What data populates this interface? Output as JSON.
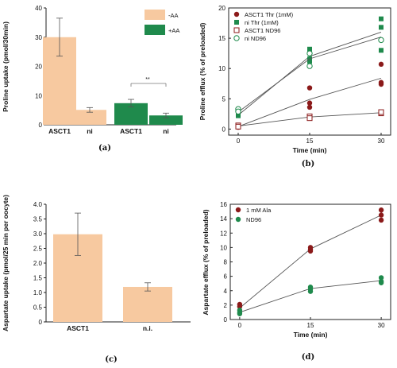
{
  "chart_data": [
    {
      "panel": "(a)",
      "type": "bar",
      "ylabel": "Proline uptake (pmol/30min)",
      "ylim": [
        0,
        40
      ],
      "yticks": [
        0,
        10,
        20,
        30,
        40
      ],
      "categories": [
        "ASCT1",
        "ni",
        "ASCT1",
        "ni"
      ],
      "values": [
        30.0,
        5.1,
        7.4,
        3.2
      ],
      "errors": [
        6.5,
        0.8,
        1.3,
        0.8
      ],
      "bar_colors": [
        "#f7c9a0",
        "#f7c9a0",
        "#1f8a4c",
        "#1f8a4c"
      ],
      "legend": [
        {
          "name": "-AA",
          "color": "#f7c9a0"
        },
        {
          "name": "+AA",
          "color": "#1f8a4c"
        }
      ],
      "legend_position": "top-right",
      "annotation": "**"
    },
    {
      "panel": "(b)",
      "type": "scatter",
      "xlabel": "Time (min)",
      "ylabel": "Proline efflux (% of preloaded)",
      "xlim": [
        -2,
        32
      ],
      "ylim": [
        -1,
        20
      ],
      "xticks": [
        0,
        15,
        30
      ],
      "yticks": [
        0,
        5,
        10,
        15,
        20
      ],
      "legend_position": "top-left",
      "series": [
        {
          "name": "ASCT1 Thr (1mM)",
          "color": "#8b1a1a",
          "marker": "filled-circle",
          "points": [
            [
              0,
              0.5
            ],
            [
              0,
              0.3
            ],
            [
              15,
              4.3
            ],
            [
              15,
              3.6
            ],
            [
              15,
              6.8
            ],
            [
              30,
              10.7
            ],
            [
              30,
              7.4
            ],
            [
              30,
              7.7
            ]
          ],
          "fit": [
            [
              0,
              0.4
            ],
            [
              15,
              4.9
            ],
            [
              30,
              8.4
            ]
          ]
        },
        {
          "name": "ni Thr (1mM)",
          "color": "#1f8a4c",
          "marker": "filled-square",
          "points": [
            [
              0,
              2.2
            ],
            [
              0,
              2.6
            ],
            [
              15,
              13.2
            ],
            [
              15,
              11.6
            ],
            [
              15,
              11.2
            ],
            [
              30,
              18.2
            ],
            [
              30,
              16.8
            ],
            [
              30,
              13.0
            ]
          ],
          "fit": [
            [
              0,
              2.3
            ],
            [
              15,
              12.0
            ],
            [
              30,
              16.0
            ]
          ]
        },
        {
          "name": "ASCT1 ND96",
          "color": "#8b1a1a",
          "marker": "open-square",
          "points": [
            [
              0,
              0.6
            ],
            [
              0,
              0.4
            ],
            [
              15,
              2.1
            ],
            [
              15,
              1.8
            ],
            [
              30,
              2.6
            ],
            [
              30,
              2.8
            ]
          ],
          "fit": [
            [
              0,
              0.5
            ],
            [
              15,
              2.0
            ],
            [
              30,
              2.7
            ]
          ]
        },
        {
          "name": "ni ND96",
          "color": "#1f8a4c",
          "marker": "open-circle",
          "points": [
            [
              0,
              3.3
            ],
            [
              0,
              2.9
            ],
            [
              15,
              12.5
            ],
            [
              15,
              10.4
            ],
            [
              30,
              14.7
            ]
          ],
          "fit": [
            [
              0,
              2.8
            ],
            [
              15,
              11.6
            ],
            [
              30,
              15.2
            ]
          ]
        }
      ]
    },
    {
      "panel": "(c)",
      "type": "bar",
      "ylabel": "Aspartate uptake (pmol/25 min per oocyte)",
      "ylim": [
        0,
        4.0
      ],
      "yticks": [
        0,
        0.5,
        1.0,
        1.5,
        2.0,
        2.5,
        3.0,
        3.5,
        4.0
      ],
      "yticklabels": [
        "0",
        "0.5",
        "1.0",
        "1.5",
        "2.0",
        "2.5",
        "3.0",
        "3.5",
        "4.0"
      ],
      "categories": [
        "ASCT1",
        "n.i."
      ],
      "values": [
        2.98,
        1.19
      ],
      "errors": [
        0.72,
        0.14
      ],
      "bar_colors": [
        "#f7c9a0",
        "#f7c9a0"
      ]
    },
    {
      "panel": "(d)",
      "type": "scatter",
      "xlabel": "Time (min)",
      "ylabel": "Aspartate efflux (% of preloaded)",
      "xlim": [
        -2,
        32
      ],
      "ylim": [
        0,
        16
      ],
      "xticks": [
        0,
        15,
        30
      ],
      "yticks": [
        0,
        2,
        4,
        6,
        8,
        10,
        12,
        14,
        16
      ],
      "legend_position": "top-left",
      "series": [
        {
          "name": "1 mM Ala",
          "color": "#8b1a1a",
          "marker": "filled-circle",
          "points": [
            [
              0,
              2.1
            ],
            [
              0,
              1.8
            ],
            [
              15,
              10.0
            ],
            [
              15,
              9.7
            ],
            [
              15,
              9.5
            ],
            [
              30,
              15.2
            ],
            [
              30,
              14.5
            ],
            [
              30,
              13.8
            ]
          ],
          "fit": [
            [
              0,
              1.6
            ],
            [
              15,
              9.8
            ],
            [
              30,
              14.5
            ]
          ]
        },
        {
          "name": "ND96",
          "color": "#1f8a4c",
          "marker": "filled-circle",
          "points": [
            [
              0,
              1.3
            ],
            [
              0,
              1.0
            ],
            [
              0,
              0.8
            ],
            [
              15,
              4.5
            ],
            [
              15,
              4.2
            ],
            [
              15,
              3.9
            ],
            [
              30,
              5.8
            ],
            [
              30,
              5.3
            ],
            [
              30,
              5.1
            ]
          ],
          "fit": [
            [
              0,
              1.0
            ],
            [
              15,
              4.3
            ],
            [
              30,
              5.4
            ]
          ]
        }
      ]
    }
  ]
}
